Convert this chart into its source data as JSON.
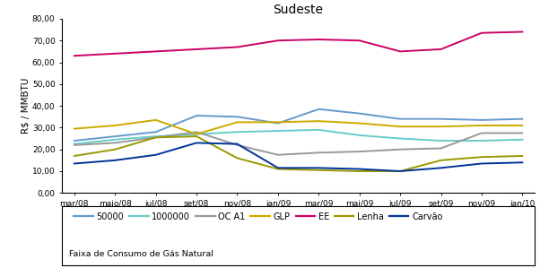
{
  "title": "Sudeste",
  "ylabel": "R$ / MMBTU",
  "xlabel_labels": [
    "mar/08",
    "maio/08",
    "jul/08",
    "set/08",
    "nov/08",
    "jan/09",
    "mar/09",
    "mai/09",
    "jul/09",
    "set/09",
    "nov/09",
    "jan/10"
  ],
  "series": {
    "50000": [
      24.0,
      26.0,
      28.0,
      35.5,
      35.0,
      32.0,
      38.5,
      36.5,
      34.0,
      34.0,
      33.5,
      34.0
    ],
    "1000000": [
      22.5,
      24.5,
      26.0,
      27.0,
      28.0,
      28.5,
      29.0,
      26.5,
      25.0,
      24.0,
      24.0,
      24.5
    ],
    "OCA1": [
      22.0,
      23.0,
      25.5,
      28.0,
      22.0,
      17.5,
      18.5,
      19.0,
      20.0,
      20.5,
      27.5,
      27.5
    ],
    "GLP": [
      29.5,
      31.0,
      33.5,
      27.0,
      32.5,
      32.5,
      33.0,
      32.0,
      30.5,
      30.5,
      31.0,
      31.0
    ],
    "EE": [
      63.0,
      64.0,
      65.0,
      66.0,
      67.0,
      70.0,
      70.5,
      70.0,
      65.0,
      66.0,
      73.5,
      74.0
    ],
    "Lenha": [
      17.0,
      20.0,
      25.5,
      26.0,
      16.0,
      11.0,
      10.5,
      10.0,
      10.0,
      15.0,
      16.5,
      17.0
    ],
    "Carvao": [
      13.5,
      15.0,
      17.5,
      23.0,
      22.5,
      11.5,
      11.5,
      11.0,
      10.0,
      11.5,
      13.5,
      14.0
    ]
  },
  "colors": {
    "50000": "#6699CC",
    "1000000": "#66CCCC",
    "OCA1": "#999999",
    "GLP": "#CCAA00",
    "EE": "#CC0066",
    "Lenha": "#999900",
    "Carvao": "#003399"
  },
  "legend_labels": {
    "50000": "50000",
    "1000000": "1000000",
    "OCA1": "OC A1",
    "GLP": "GLP",
    "EE": "EE",
    "Lenha": "Lenha",
    "Carvao": "Carvão"
  },
  "legend_subtitle": "Faixa de Consumo de Gás Natural",
  "ylim": [
    0,
    80
  ],
  "yticks": [
    0,
    10,
    20,
    30,
    40,
    50,
    60,
    70,
    80
  ],
  "ytick_labels": [
    "0,00",
    "10,00",
    "20,00",
    "30,00",
    "40,00",
    "50,00",
    "60,00",
    "70,00",
    "80,00"
  ],
  "bg_color": "#ffffff"
}
